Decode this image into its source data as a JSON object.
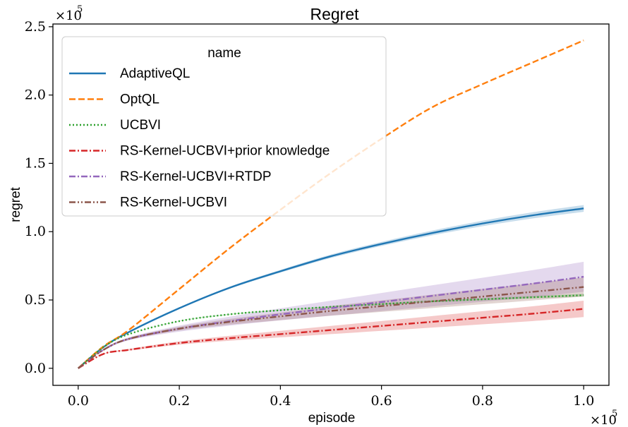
{
  "chart_data": {
    "type": "line",
    "title": "Regret",
    "xlabel": "episode",
    "ylabel": "regret",
    "xlim": [
      -5000,
      105000
    ],
    "ylim": [
      -12500,
      252000
    ],
    "x_ticks": [
      0,
      20000,
      40000,
      60000,
      80000,
      100000
    ],
    "x_tick_labels": [
      "0.0",
      "0.2",
      "0.4",
      "0.6",
      "0.8",
      "1.0"
    ],
    "y_ticks": [
      0,
      50000,
      100000,
      150000,
      200000,
      250000
    ],
    "y_tick_labels": [
      "0.0",
      "0.5",
      "1.0",
      "1.5",
      "2.0",
      "2.5"
    ],
    "x_offset_base": "×10",
    "x_offset_exp": "5",
    "y_offset_base": "×10",
    "y_offset_exp": "5",
    "grid": false,
    "legend": {
      "title": "name",
      "placement": "top-left"
    },
    "x": [
      0,
      5000,
      10000,
      20000,
      30000,
      40000,
      50000,
      60000,
      70000,
      80000,
      90000,
      100000
    ],
    "series": [
      {
        "name": "AdaptiveQL",
        "color": "#1f77b4",
        "dash": "solid",
        "values": [
          0,
          15500,
          26500,
          44000,
          59000,
          71000,
          82000,
          91000,
          99000,
          106000,
          112000,
          117000
        ],
        "band": 2500
      },
      {
        "name": "OptQL",
        "color": "#ff7f0e",
        "dash": "dashed",
        "values": [
          0,
          16000,
          28000,
          58000,
          88000,
          116000,
          143000,
          168000,
          191000,
          208000,
          224000,
          240000
        ],
        "band": 0
      },
      {
        "name": "UCBVI",
        "color": "#2ca02c",
        "dash": "dotted",
        "values": [
          0,
          15500,
          25000,
          34500,
          39500,
          42500,
          45000,
          47000,
          49000,
          50500,
          52000,
          53500
        ],
        "band": 1000
      },
      {
        "name": "RS-Kernel-UCBVI+prior knowledge",
        "color": "#d62728",
        "dash": "dashdot",
        "values": [
          0,
          10500,
          13500,
          18500,
          22000,
          25000,
          28000,
          31000,
          34000,
          37000,
          40000,
          43500
        ],
        "band": 6000
      },
      {
        "name": "RS-Kernel-UCBVI+RTDP",
        "color": "#9467bd",
        "dash": "dashdot",
        "values": [
          0,
          13500,
          21500,
          29000,
          34500,
          39500,
          44000,
          48500,
          53000,
          57500,
          62000,
          67000
        ],
        "band": 11000
      },
      {
        "name": "RS-Kernel-UCBVI",
        "color": "#8c564b",
        "dash": "dashdotdot",
        "values": [
          0,
          13500,
          21500,
          29000,
          34000,
          38000,
          42000,
          45500,
          49000,
          52500,
          56000,
          59500
        ],
        "band": 7000
      }
    ]
  }
}
